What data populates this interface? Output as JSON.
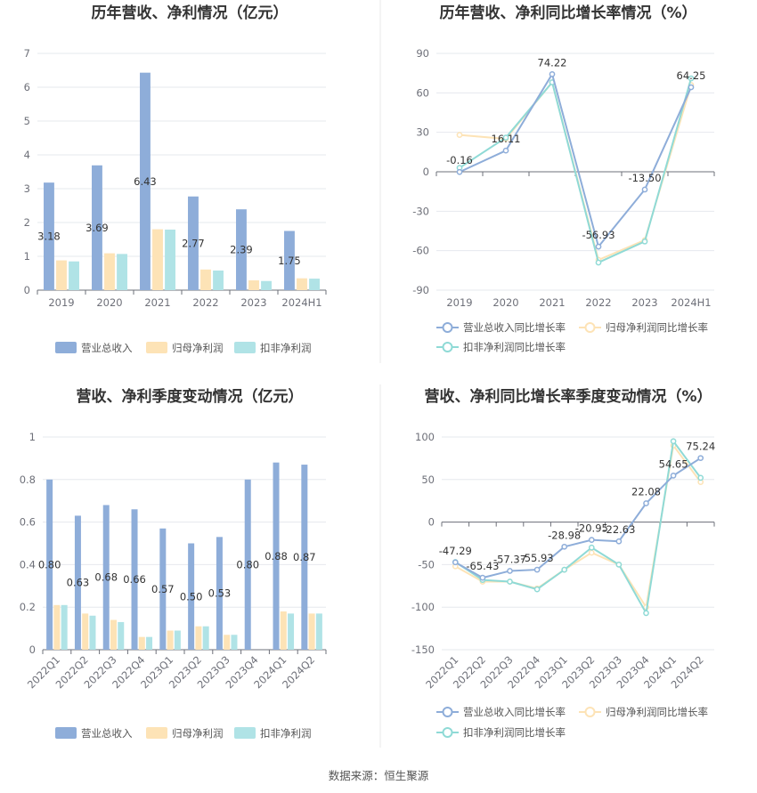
{
  "colors": {
    "revenue": "#8eadd9",
    "net_profit": "#fde3b6",
    "deducted_profit": "#b0e3e6",
    "revenue_line": "#8eadd9",
    "net_profit_line": "#fde3b6",
    "deducted_profit_line": "#8fdad6"
  },
  "source": "数据来源：恒生聚源",
  "chart_data": [
    {
      "type": "bar",
      "title": "历年营收、净利情况（亿元）",
      "categories": [
        "2019",
        "2020",
        "2021",
        "2022",
        "2023",
        "2024H1"
      ],
      "ylim": [
        0,
        7
      ],
      "yticks": [
        0,
        1,
        2,
        3,
        4,
        5,
        6,
        7
      ],
      "grid": true,
      "legend_position": "bottom",
      "series": [
        {
          "name": "营业总收入",
          "values": [
            3.18,
            3.69,
            6.43,
            2.77,
            2.39,
            1.75
          ],
          "labels": [
            "3.18",
            "3.69",
            "6.43",
            "2.77",
            "2.39",
            "1.75"
          ]
        },
        {
          "name": "归母净利润",
          "values": [
            0.88,
            1.09,
            1.8,
            0.61,
            0.29,
            0.35
          ]
        },
        {
          "name": "扣非净利润",
          "values": [
            0.85,
            1.07,
            1.79,
            0.58,
            0.27,
            0.34
          ]
        }
      ]
    },
    {
      "type": "line",
      "title": "历年营收、净利同比增长率情况（%）",
      "categories": [
        "2019",
        "2020",
        "2021",
        "2022",
        "2023",
        "2024H1"
      ],
      "ylim": [
        -90,
        90
      ],
      "yticks": [
        -90,
        -60,
        -30,
        0,
        30,
        60,
        90
      ],
      "grid": true,
      "legend_position": "bottom",
      "series": [
        {
          "name": "营业总收入同比增长率",
          "values": [
            -0.16,
            16.11,
            74.22,
            -56.93,
            -13.5,
            64.25
          ],
          "labels": [
            "-0.16",
            "16.11",
            "74.22",
            "-56.93",
            "-13.50",
            "64.25"
          ]
        },
        {
          "name": "归母净利润同比增长率",
          "values": [
            28,
            25,
            68,
            -67,
            -52,
            66
          ]
        },
        {
          "name": "扣非净利润同比增长率",
          "values": [
            3,
            26,
            68,
            -69,
            -53,
            71
          ]
        }
      ]
    },
    {
      "type": "bar",
      "title": "营收、净利季度变动情况（亿元）",
      "categories": [
        "2022Q1",
        "2022Q2",
        "2022Q3",
        "2022Q4",
        "2023Q1",
        "2023Q2",
        "2023Q3",
        "2023Q4",
        "2024Q1",
        "2024Q2"
      ],
      "ylim": [
        0,
        1
      ],
      "yticks": [
        0,
        0.2,
        0.4,
        0.6,
        0.8,
        1
      ],
      "grid": true,
      "legend_position": "bottom",
      "series": [
        {
          "name": "营业总收入",
          "values": [
            0.8,
            0.63,
            0.68,
            0.66,
            0.57,
            0.5,
            0.53,
            0.8,
            0.88,
            0.87
          ],
          "labels": [
            "0.80",
            "0.63",
            "0.68",
            "0.66",
            "0.57",
            "0.50",
            "0.53",
            "0.80",
            "0.88",
            "0.87"
          ]
        },
        {
          "name": "归母净利润",
          "values": [
            0.21,
            0.17,
            0.14,
            0.06,
            0.09,
            0.11,
            0.07,
            0.0,
            0.18,
            0.17
          ]
        },
        {
          "name": "扣非净利润",
          "values": [
            0.21,
            0.16,
            0.13,
            0.06,
            0.09,
            0.11,
            0.07,
            0.0,
            0.17,
            0.17
          ]
        }
      ]
    },
    {
      "type": "line",
      "title": "营收、净利同比增长率季度变动情况（%）",
      "categories": [
        "2022Q1",
        "2022Q2",
        "2022Q3",
        "2022Q4",
        "2023Q1",
        "2023Q2",
        "2023Q3",
        "2023Q4",
        "2024Q1",
        "2024Q2"
      ],
      "ylim": [
        -150,
        100
      ],
      "yticks": [
        -150,
        -100,
        -50,
        0,
        50,
        100
      ],
      "grid": true,
      "legend_position": "bottom",
      "series": [
        {
          "name": "营业总收入同比增长率",
          "values": [
            -47.29,
            -65.43,
            -57.37,
            -55.93,
            -28.98,
            -20.95,
            -22.63,
            22.08,
            54.65,
            75.24
          ],
          "labels": [
            "-47.29",
            "-65.43",
            "-57.37",
            "-55.93",
            "-28.98",
            "-20.95",
            "-22.63",
            "22.08",
            "54.65",
            "75.24"
          ]
        },
        {
          "name": "归母净利润同比增长率",
          "values": [
            -52,
            -70,
            -70,
            -78,
            -56,
            -36,
            -50,
            -100,
            90,
            47
          ]
        },
        {
          "name": "扣非净利润同比增长率",
          "values": [
            -47,
            -68,
            -70,
            -79,
            -56,
            -30,
            -50,
            -107,
            95,
            52
          ]
        }
      ]
    }
  ]
}
